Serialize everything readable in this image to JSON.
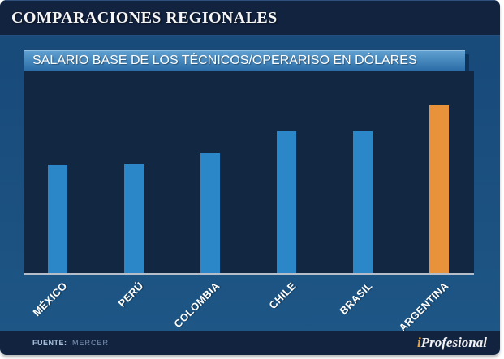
{
  "header": {
    "title": "COMPARACIONES REGIONALES"
  },
  "chart_data": {
    "type": "bar",
    "title": "SALARIO BASE DE LOS TÉCNICOS/OPERARISO EN DÓLARES",
    "categories": [
      "MÉXICO",
      "PERÚ",
      "COLOMBIA",
      "CHILE",
      "BRASIL",
      "ARGENTINA"
    ],
    "values": [
      64.5,
      65,
      71.5,
      84.5,
      84.5,
      100
    ],
    "value_unit": "percent-of-tallest-bar (no numeric axis or data labels shown in image)",
    "highlight_category": "ARGENTINA",
    "bar_color": "#2b87c7",
    "highlight_color": "#e8923c",
    "plot_background": "#122741",
    "axis_line_color": "#b6bfc9",
    "label_color": "#ffffff",
    "grid": false,
    "legend": false,
    "xlabel": "",
    "ylabel": "",
    "ylim": [
      0,
      100
    ]
  },
  "footer": {
    "source_label": "FUENTE:",
    "source_value": "MERCER",
    "brand_prefix": "i",
    "brand_name": "Profesional",
    "brand_prefix_color": "#e9a13b"
  },
  "colors": {
    "page_bg": "#ffffff",
    "header_bg": "#122340",
    "footer_bg": "#122340",
    "body_bg_top": "#174878",
    "body_bg_bottom": "#1e5787",
    "title_bar_top": "#5fa0d0",
    "title_bar_bottom": "#2a6ba6"
  }
}
